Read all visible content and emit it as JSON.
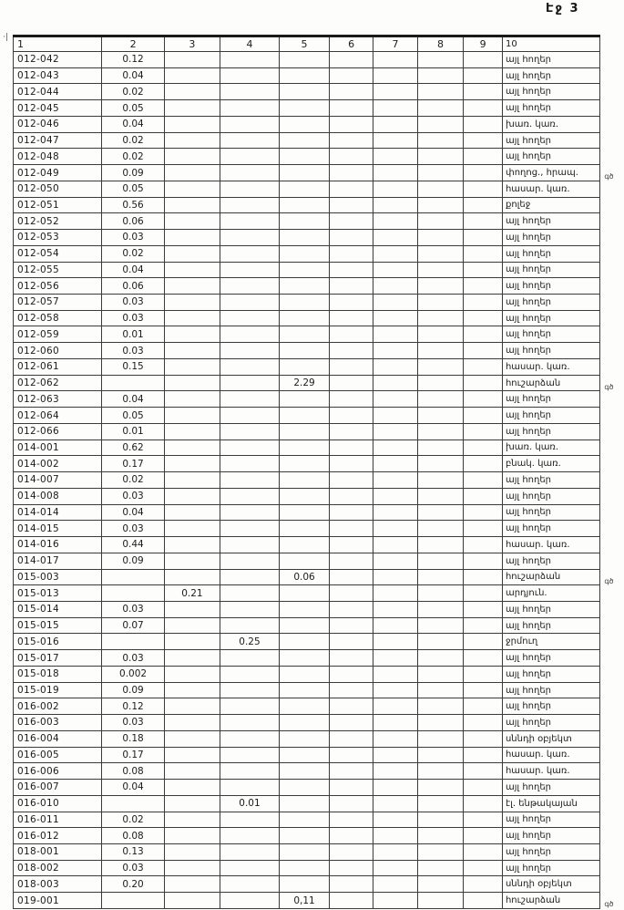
{
  "page": {
    "label": "Էջ 3",
    "stray_mark": "·|"
  },
  "table": {
    "headers": [
      "1",
      "2",
      "3",
      "4",
      "5",
      "6",
      "7",
      "8",
      "9",
      "10"
    ],
    "rows": [
      {
        "id": "012-042",
        "c2": "0.12",
        "c10": "այլ հողեր"
      },
      {
        "id": "012-043",
        "c2": "0.04",
        "c10": "այլ հողեր"
      },
      {
        "id": "012-044",
        "c2": "0.02",
        "c10": "այլ հողեր"
      },
      {
        "id": "012-045",
        "c2": "0.05",
        "c10": "այլ հողեր"
      },
      {
        "id": "012-046",
        "c2": "0.04",
        "c10": "խառ. կառ."
      },
      {
        "id": "012-047",
        "c2": "0.02",
        "c10": "այլ հողեր"
      },
      {
        "id": "012-048",
        "c2": "0.02",
        "c10": "այլ հողեր"
      },
      {
        "id": "012-049",
        "c2": "0.09",
        "c10": "փողոց., հրապ.",
        "note": "գծ"
      },
      {
        "id": "012-050",
        "c2": "0.05",
        "c10": "հասար. կառ."
      },
      {
        "id": "012-051",
        "c2": "0.56",
        "c10": "քոլեջ"
      },
      {
        "id": "012-052",
        "c2": "0.06",
        "c10": "այլ հողեր"
      },
      {
        "id": "012-053",
        "c2": "0.03",
        "c10": "այլ հողեր"
      },
      {
        "id": "012-054",
        "c2": "0.02",
        "c10": "այլ հողեր"
      },
      {
        "id": "012-055",
        "c2": "0.04",
        "c10": "այլ հողեր"
      },
      {
        "id": "012-056",
        "c2": "0.06",
        "c10": "այլ հողեր"
      },
      {
        "id": "012-057",
        "c2": "0.03",
        "c10": "այլ հողեր"
      },
      {
        "id": "012-058",
        "c2": "0.03",
        "c10": "այլ հողեր"
      },
      {
        "id": "012-059",
        "c2": "0.01",
        "c10": "այլ հողեր"
      },
      {
        "id": "012-060",
        "c2": "0.03",
        "c10": "այլ հողեր"
      },
      {
        "id": "012-061",
        "c2": "0.15",
        "c10": "հասար. կառ."
      },
      {
        "id": "012-062",
        "c5": "2.29",
        "c10": "հուշարձան",
        "note": "գծ"
      },
      {
        "id": "012-063",
        "c2": "0.04",
        "c10": "այլ հողեր"
      },
      {
        "id": "012-064",
        "c2": "0.05",
        "c10": "այլ հողեր"
      },
      {
        "id": "012-066",
        "c2": "0.01",
        "c10": "այլ հողեր"
      },
      {
        "id": "014-001",
        "c2": "0.62",
        "c10": "խառ. կառ."
      },
      {
        "id": "014-002",
        "c2": "0.17",
        "c10": "բնակ. կառ."
      },
      {
        "id": "014-007",
        "c2": "0.02",
        "c10": "այլ հողեր"
      },
      {
        "id": "014-008",
        "c2": "0.03",
        "c10": "այլ հողեր"
      },
      {
        "id": "014-014",
        "c2": "0.04",
        "c10": "այլ հողեր"
      },
      {
        "id": "014-015",
        "c2": "0.03",
        "c10": "այլ հողեր"
      },
      {
        "id": "014-016",
        "c2": "0.44",
        "c10": "հասար. կառ."
      },
      {
        "id": "014-017",
        "c2": "0.09",
        "c10": "այլ հողեր"
      },
      {
        "id": "015-003",
        "c5": "0.06",
        "c10": "հուշարձան",
        "note": "գծ"
      },
      {
        "id": "015-013",
        "c3": "0.21",
        "c10": "արդյուն."
      },
      {
        "id": "015-014",
        "c2": "0.03",
        "c10": "այլ հողեր"
      },
      {
        "id": "015-015",
        "c2": "0.07",
        "c10": "այլ հողեր"
      },
      {
        "id": "015-016",
        "c4": "0.25",
        "c10": "ջրմուղ"
      },
      {
        "id": "015-017",
        "c2": "0.03",
        "c10": "այլ հողեր"
      },
      {
        "id": "015-018",
        "c2": "0.002",
        "c10": "այլ հողեր"
      },
      {
        "id": "015-019",
        "c2": "0.09",
        "c10": "այլ հողեր"
      },
      {
        "id": "016-002",
        "c2": "0.12",
        "c10": "այլ հողեր"
      },
      {
        "id": "016-003",
        "c2": "0.03",
        "c10": "այլ հողեր"
      },
      {
        "id": "016-004",
        "c2": "0.18",
        "c10": "սննդի օբյեկտ"
      },
      {
        "id": "016-005",
        "c2": "0.17",
        "c10": "հասար. կառ."
      },
      {
        "id": "016-006",
        "c2": "0.08",
        "c10": "հասար. կառ."
      },
      {
        "id": "016-007",
        "c2": "0.04",
        "c10": "այլ հողեր"
      },
      {
        "id": "016-010",
        "c4": "0.01",
        "c10": "էլ. ենթակայան"
      },
      {
        "id": "016-011",
        "c2": "0.02",
        "c10": "այլ հողեր"
      },
      {
        "id": "016-012",
        "c2": "0.08",
        "c10": "այլ հողեր"
      },
      {
        "id": "018-001",
        "c2": "0.13",
        "c10": "այլ հողեր"
      },
      {
        "id": "018-002",
        "c2": "0.03",
        "c10": "այլ հողեր"
      },
      {
        "id": "018-003",
        "c2": "0.20",
        "c10": "սննդի օբյեկտ"
      },
      {
        "id": "019-001",
        "c5": "0,11",
        "c10": "հուշարձան",
        "note": "գծ"
      }
    ]
  }
}
